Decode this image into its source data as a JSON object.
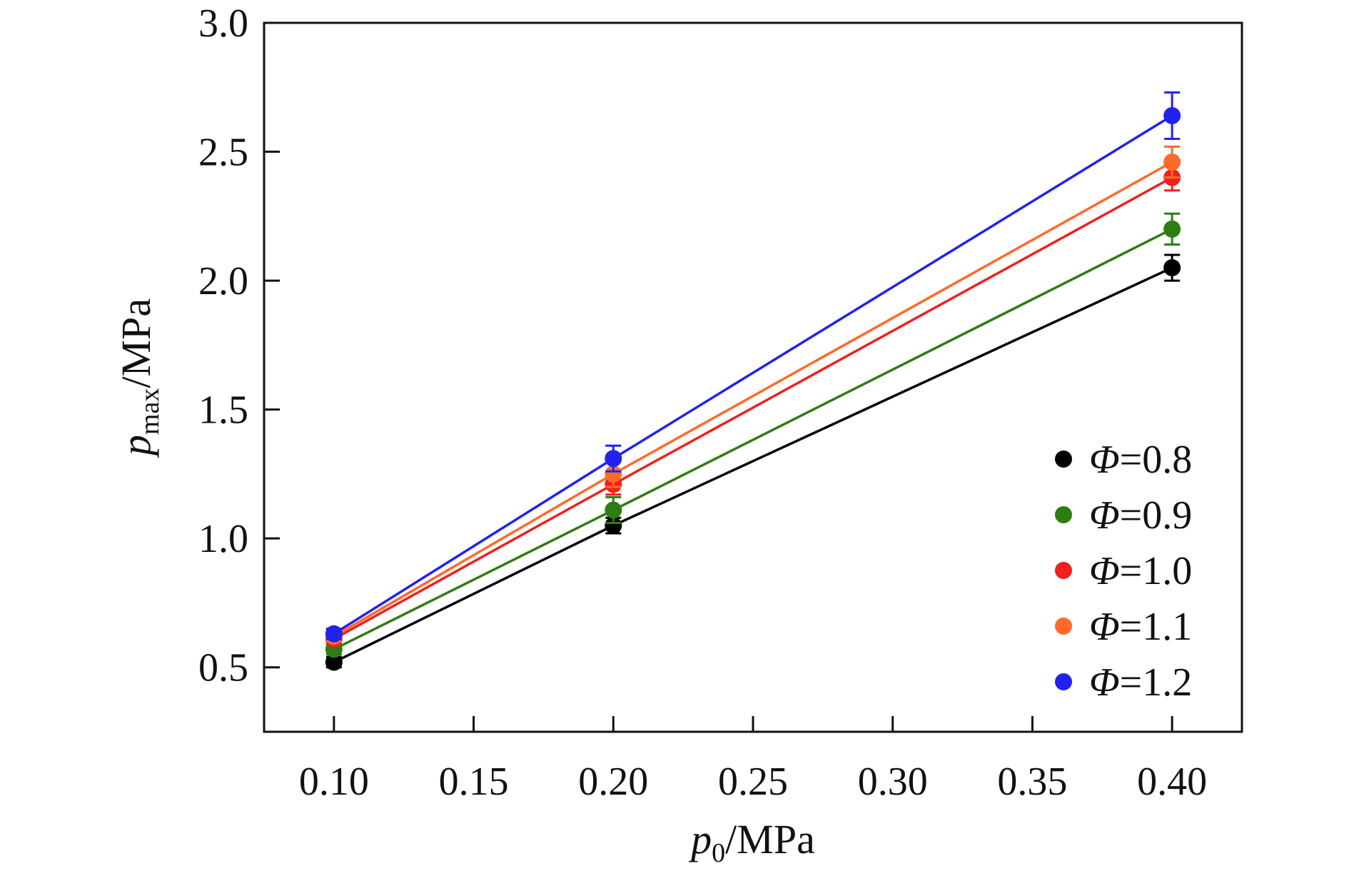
{
  "chart_data": {
    "type": "line",
    "xlabel": {
      "main": "p",
      "sub": "0",
      "unit": "/MPa"
    },
    "ylabel": {
      "main": "p",
      "sub": "max",
      "unit": "/MPa"
    },
    "xlim": [
      0.075,
      0.425
    ],
    "ylim": [
      0.25,
      3.0
    ],
    "xticks": [
      0.1,
      0.15,
      0.2,
      0.25,
      0.3,
      0.35,
      0.4
    ],
    "xtick_labels": [
      "0.10",
      "0.15",
      "0.20",
      "0.25",
      "0.30",
      "0.35",
      "0.40"
    ],
    "yticks": [
      0.5,
      1.0,
      1.5,
      2.0,
      2.5,
      3.0
    ],
    "ytick_labels": [
      "0.5",
      "1.0",
      "1.5",
      "2.0",
      "2.5",
      "3.0"
    ],
    "grid": false,
    "legend_position": "bottom-right",
    "x": [
      0.1,
      0.2,
      0.4
    ],
    "series": [
      {
        "name": "Φ=0.8",
        "symbol": "Φ",
        "value_label": "=0.8",
        "color": "#000000",
        "values": [
          0.52,
          1.05,
          2.05
        ],
        "errors": [
          0.02,
          0.03,
          0.05
        ]
      },
      {
        "name": "Φ=0.9",
        "symbol": "Φ",
        "value_label": "=0.9",
        "color": "#2e7d12",
        "values": [
          0.57,
          1.11,
          2.2
        ],
        "errors": [
          0.02,
          0.05,
          0.06
        ]
      },
      {
        "name": "Φ=1.0",
        "symbol": "Φ",
        "value_label": "=1.0",
        "color": "#ee2020",
        "values": [
          0.61,
          1.21,
          2.4
        ],
        "errors": [
          0.02,
          0.04,
          0.05
        ]
      },
      {
        "name": "Φ=1.1",
        "symbol": "Φ",
        "value_label": "=1.1",
        "color": "#ff6a2a",
        "values": [
          0.62,
          1.25,
          2.46
        ],
        "errors": [
          0.02,
          0.05,
          0.06
        ]
      },
      {
        "name": "Φ=1.2",
        "symbol": "Φ",
        "value_label": "=1.2",
        "color": "#2222ee",
        "values": [
          0.63,
          1.31,
          2.64
        ],
        "errors": [
          0.02,
          0.05,
          0.09
        ]
      }
    ]
  }
}
